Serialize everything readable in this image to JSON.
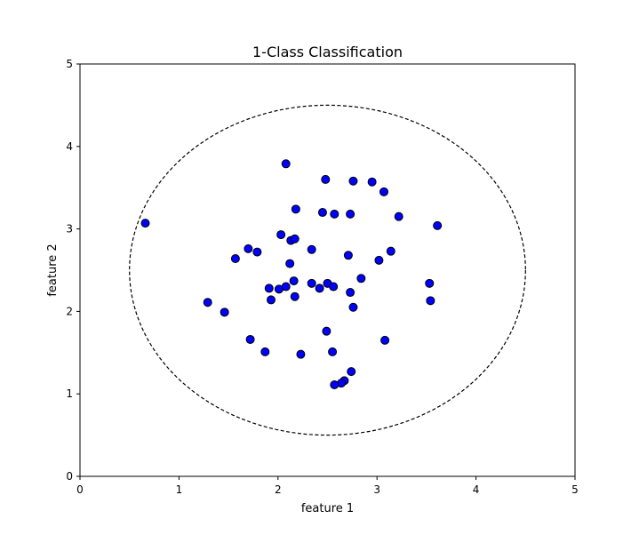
{
  "chart_data": {
    "type": "scatter",
    "title": "1-Class Classification",
    "xlabel": "feature 1",
    "ylabel": "feature 2",
    "xlim": [
      0,
      5
    ],
    "ylim": [
      0,
      5
    ],
    "xticks": [
      "0",
      "1",
      "2",
      "3",
      "4",
      "5"
    ],
    "yticks": [
      "0",
      "1",
      "2",
      "3",
      "4",
      "5"
    ],
    "grid": false,
    "marker_color": "#0000ff",
    "marker_edge_color": "#000000",
    "boundary": {
      "shape": "ellipse",
      "center": [
        2.5,
        2.5
      ],
      "radius_x": 2,
      "radius_y": 2,
      "style": "dashed",
      "color": "#000000"
    },
    "points": [
      [
        0.66,
        3.07
      ],
      [
        2.08,
        3.79
      ],
      [
        2.48,
        3.6
      ],
      [
        2.76,
        3.58
      ],
      [
        2.95,
        3.57
      ],
      [
        3.07,
        3.45
      ],
      [
        2.18,
        3.24
      ],
      [
        2.45,
        3.2
      ],
      [
        2.57,
        3.18
      ],
      [
        2.73,
        3.18
      ],
      [
        3.22,
        3.15
      ],
      [
        3.61,
        3.04
      ],
      [
        2.03,
        2.93
      ],
      [
        2.13,
        2.86
      ],
      [
        2.17,
        2.88
      ],
      [
        1.7,
        2.76
      ],
      [
        1.79,
        2.72
      ],
      [
        2.34,
        2.75
      ],
      [
        1.57,
        2.64
      ],
      [
        2.71,
        2.68
      ],
      [
        3.14,
        2.73
      ],
      [
        3.02,
        2.62
      ],
      [
        2.12,
        2.58
      ],
      [
        2.84,
        2.4
      ],
      [
        2.16,
        2.37
      ],
      [
        2.34,
        2.34
      ],
      [
        2.5,
        2.34
      ],
      [
        2.42,
        2.28
      ],
      [
        2.56,
        2.3
      ],
      [
        1.91,
        2.28
      ],
      [
        2.01,
        2.27
      ],
      [
        2.08,
        2.3
      ],
      [
        3.53,
        2.34
      ],
      [
        2.73,
        2.23
      ],
      [
        1.93,
        2.14
      ],
      [
        2.17,
        2.18
      ],
      [
        3.54,
        2.13
      ],
      [
        1.29,
        2.11
      ],
      [
        2.76,
        2.05
      ],
      [
        1.46,
        1.99
      ],
      [
        2.49,
        1.76
      ],
      [
        1.72,
        1.66
      ],
      [
        3.08,
        1.65
      ],
      [
        1.87,
        1.51
      ],
      [
        2.23,
        1.48
      ],
      [
        2.55,
        1.51
      ],
      [
        2.74,
        1.27
      ],
      [
        2.67,
        1.16
      ],
      [
        2.64,
        1.13
      ],
      [
        2.57,
        1.11
      ]
    ]
  }
}
